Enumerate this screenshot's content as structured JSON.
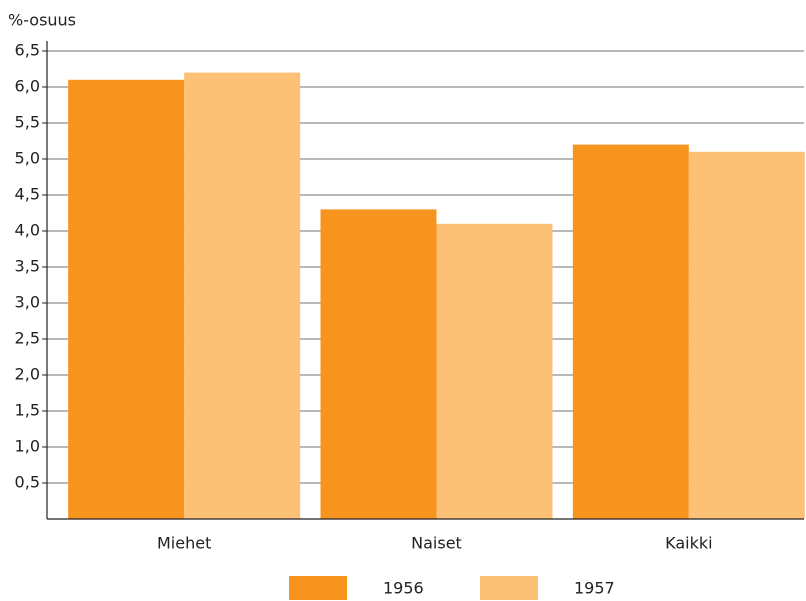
{
  "chart_data": {
    "type": "bar",
    "y_label": "%-osuus",
    "categories": [
      "Miehet",
      "Naiset",
      "Kaikki"
    ],
    "series": [
      {
        "name": "1956",
        "color": "#f7941d",
        "values": [
          6.1,
          4.3,
          5.2
        ]
      },
      {
        "name": "1957",
        "color": "#fcc177",
        "values": [
          6.2,
          4.1,
          5.1
        ]
      }
    ],
    "ylim": [
      0,
      6.5
    ],
    "yticks": [
      {
        "value": 0.5,
        "label": "0,5"
      },
      {
        "value": 1.0,
        "label": "1,0"
      },
      {
        "value": 1.5,
        "label": "1,5"
      },
      {
        "value": 2.0,
        "label": "2,0"
      },
      {
        "value": 2.5,
        "label": "2,5"
      },
      {
        "value": 3.0,
        "label": "3,0"
      },
      {
        "value": 3.5,
        "label": "3,5"
      },
      {
        "value": 4.0,
        "label": "4,0"
      },
      {
        "value": 4.5,
        "label": "4,5"
      },
      {
        "value": 5.0,
        "label": "5,0"
      },
      {
        "value": 5.5,
        "label": "5,5"
      },
      {
        "value": 6.0,
        "label": "6,0"
      },
      {
        "value": 6.5,
        "label": "6,5"
      }
    ],
    "grid": true,
    "legend": "bottom"
  }
}
